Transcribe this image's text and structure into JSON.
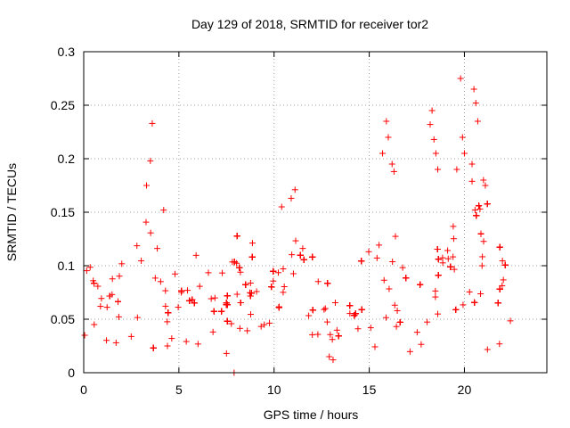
{
  "chart_data": {
    "type": "scatter",
    "title": "Day 129 of 2018, SRMTID for receiver tor2",
    "xlabel": "GPS time / hours",
    "ylabel": "SRMTID / TECUs",
    "xlim": [
      0,
      24.33
    ],
    "ylim": [
      0,
      0.3
    ],
    "xticks": [
      0,
      5,
      10,
      15,
      20
    ],
    "xtick_labels": [
      "0",
      "5",
      "10",
      "15",
      "20"
    ],
    "yticks": [
      0,
      0.05,
      0.1,
      0.15,
      0.2,
      0.25,
      0.3
    ],
    "ytick_labels": [
      "0",
      "0.05",
      "0.1",
      "0.15",
      "0.2",
      "0.25",
      "0.3"
    ],
    "grid": true,
    "marker": "plus",
    "color": "#ff0000",
    "envelope": {
      "description": "approximate centre and spread of the point cloud vs time (data units)",
      "x": [
        0,
        1,
        2,
        3,
        3.5,
        4,
        5,
        6,
        7,
        7.5,
        8,
        9,
        10,
        11,
        12,
        13,
        14,
        15,
        15.8,
        16.5,
        17,
        18,
        19,
        19.8,
        20.5,
        21,
        22,
        22.7
      ],
      "center": [
        0.075,
        0.07,
        0.06,
        0.085,
        0.1,
        0.08,
        0.07,
        0.065,
        0.06,
        0.055,
        0.09,
        0.07,
        0.075,
        0.08,
        0.065,
        0.045,
        0.06,
        0.08,
        0.11,
        0.07,
        0.06,
        0.07,
        0.08,
        0.12,
        0.13,
        0.1,
        0.075,
        0.07
      ],
      "spread": [
        0.025,
        0.03,
        0.025,
        0.035,
        0.045,
        0.035,
        0.025,
        0.025,
        0.025,
        0.025,
        0.03,
        0.03,
        0.035,
        0.035,
        0.03,
        0.025,
        0.03,
        0.035,
        0.05,
        0.035,
        0.03,
        0.035,
        0.04,
        0.04,
        0.045,
        0.04,
        0.03,
        0.025
      ]
    },
    "points": [
      [
        0.05,
        0.035
      ],
      [
        0.55,
        0.045
      ],
      [
        1.7,
        0.028
      ],
      [
        3.6,
        0.233
      ],
      [
        3.5,
        0.198
      ],
      [
        3.3,
        0.175
      ],
      [
        4.2,
        0.152
      ],
      [
        4.4,
        0.025
      ],
      [
        7.5,
        0.018
      ],
      [
        7.9,
        0.0
      ],
      [
        10.4,
        0.155
      ],
      [
        10.9,
        0.163
      ],
      [
        11.1,
        0.171
      ],
      [
        12.9,
        0.015
      ],
      [
        13.1,
        0.012
      ],
      [
        15.9,
        0.235
      ],
      [
        16.0,
        0.22
      ],
      [
        15.7,
        0.205
      ],
      [
        16.2,
        0.195
      ],
      [
        16.3,
        0.188
      ],
      [
        18.3,
        0.245
      ],
      [
        18.2,
        0.232
      ],
      [
        18.4,
        0.218
      ],
      [
        18.5,
        0.205
      ],
      [
        18.6,
        0.19
      ],
      [
        19.8,
        0.275
      ],
      [
        20.5,
        0.265
      ],
      [
        20.6,
        0.252
      ],
      [
        20.7,
        0.235
      ],
      [
        19.9,
        0.22
      ],
      [
        20.0,
        0.205
      ],
      [
        20.4,
        0.195
      ],
      [
        21.0,
        0.18
      ],
      [
        21.1,
        0.175
      ],
      [
        19.6,
        0.19
      ]
    ]
  }
}
